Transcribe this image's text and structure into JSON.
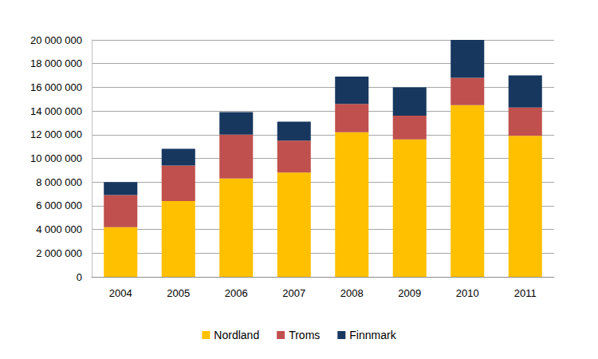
{
  "chart_data": {
    "type": "bar",
    "stacked": true,
    "grid": true,
    "legend": "bottom",
    "categories": [
      "2004",
      "2005",
      "2006",
      "2007",
      "2008",
      "2009",
      "2010",
      "2011"
    ],
    "series": [
      {
        "name": "Nordland",
        "color": "#ffc000",
        "values": [
          4200000,
          6400000,
          8300000,
          8800000,
          12200000,
          11600000,
          14500000,
          11900000
        ]
      },
      {
        "name": "Troms",
        "color": "#c0504d",
        "values": [
          2700000,
          3000000,
          3700000,
          2700000,
          2400000,
          2000000,
          2300000,
          2400000
        ]
      },
      {
        "name": "Finnmark",
        "color": "#17375e",
        "values": [
          1100000,
          1400000,
          1900000,
          1600000,
          2300000,
          2400000,
          3200000,
          2700000
        ]
      }
    ],
    "ylim": [
      0,
      20000000
    ],
    "yticks": [
      {
        "value": 0,
        "label": "0"
      },
      {
        "value": 2000000,
        "label": "2 000 000"
      },
      {
        "value": 4000000,
        "label": "4 000 000"
      },
      {
        "value": 6000000,
        "label": "6 000 000"
      },
      {
        "value": 8000000,
        "label": "8 000 000"
      },
      {
        "value": 10000000,
        "label": "10 000 000"
      },
      {
        "value": 12000000,
        "label": "12 000 000"
      },
      {
        "value": 14000000,
        "label": "14 000 000"
      },
      {
        "value": 16000000,
        "label": "16 000 000"
      },
      {
        "value": 18000000,
        "label": "18 000 000"
      },
      {
        "value": 20000000,
        "label": "20 000 000"
      }
    ]
  }
}
